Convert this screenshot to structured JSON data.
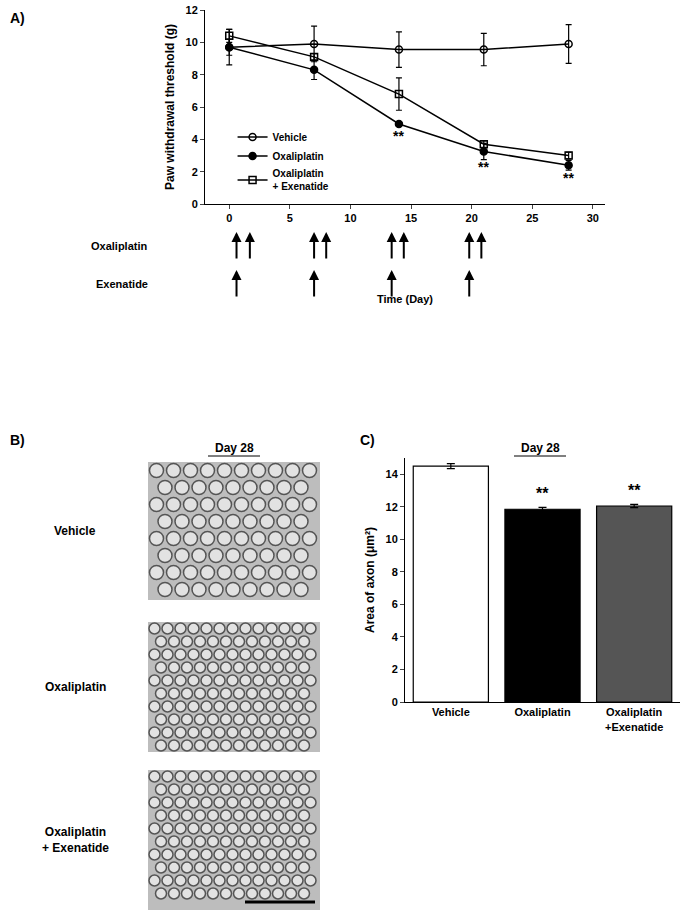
{
  "chart_data": [
    {
      "type": "line",
      "panel_label": "A)",
      "xlabel": "Time (Day)",
      "ylabel": "Paw withdrawal threshold (g)",
      "x": [
        0,
        7,
        14,
        21,
        28
      ],
      "xlim": [
        -2,
        31
      ],
      "xticks": [
        0,
        5,
        10,
        15,
        20,
        25,
        30
      ],
      "ylim": [
        0,
        12
      ],
      "yticks": [
        0,
        2,
        4,
        6,
        8,
        10,
        12
      ],
      "legend": "lower left",
      "series": [
        {
          "name": "Vehicle",
          "color": "#000000",
          "marker": "circle-open",
          "values": [
            9.7,
            9.9,
            9.55,
            9.55,
            9.9
          ],
          "errors": [
            1.1,
            1.1,
            1.1,
            1.0,
            1.2
          ]
        },
        {
          "name": "Oxaliplatin",
          "color": "#000000",
          "marker": "circle",
          "values": [
            9.7,
            8.3,
            4.95,
            3.25,
            2.4
          ],
          "errors": [
            0.5,
            0.6,
            0.15,
            0.5,
            0.3
          ]
        },
        {
          "name": "Oxaliplatin\n+ Exenatide",
          "color": "#000000",
          "marker": "square-open",
          "values": [
            10.4,
            9.1,
            6.8,
            3.7,
            3.0
          ],
          "errors": [
            0.4,
            0.2,
            1.0,
            0.2,
            0.2
          ]
        }
      ],
      "annotations": [
        {
          "x": 14,
          "y": 4.2,
          "text": "**"
        },
        {
          "x": 21,
          "y": 2.3,
          "text": "**"
        },
        {
          "x": 28,
          "y": 1.6,
          "text": "**"
        }
      ],
      "dosing": [
        {
          "label": "Oxaliplatin",
          "days": [
            0.6,
            1.7,
            7,
            8,
            13.4,
            14.4,
            19.8,
            20.8
          ]
        },
        {
          "label": "Exenatide",
          "days": [
            0.6,
            7,
            13.4,
            19.8
          ]
        }
      ]
    },
    {
      "type": "bar",
      "panel_label": "C)",
      "title": "Day 28",
      "ylabel": "Area of axon (μm²)",
      "categories": [
        "Vehicle",
        "Oxaliplatin",
        "Oxaliplatin\n+Exenatide"
      ],
      "values": [
        14.5,
        11.85,
        12.05
      ],
      "errors": [
        0.15,
        0.12,
        0.1
      ],
      "colors": [
        "#ffffff",
        "#000000",
        "#555555"
      ],
      "ylim": [
        0,
        15
      ],
      "yticks": [
        0,
        2,
        4,
        6,
        8,
        10,
        12,
        14
      ],
      "annotations": [
        {
          "x": 1,
          "y": 12.15,
          "text": "**"
        },
        {
          "x": 2,
          "y": 12.35,
          "text": "**"
        }
      ]
    }
  ],
  "micrographs": {
    "panel_label": "B)",
    "title": "Day 28",
    "rows": [
      "Vehicle",
      "Oxaliplatin",
      "Oxaliplatin\n+ Exenatide"
    ]
  }
}
